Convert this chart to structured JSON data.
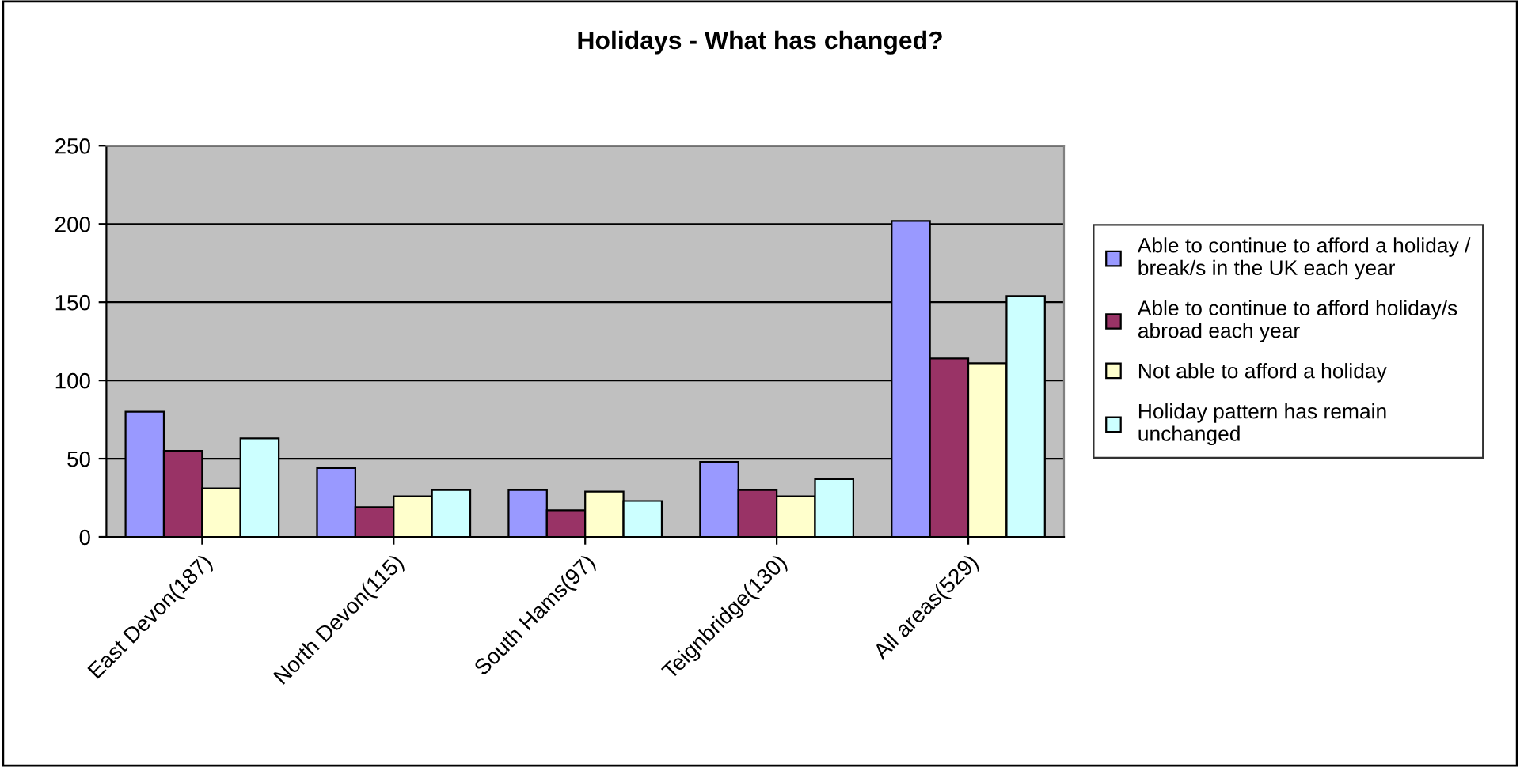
{
  "chart_data": {
    "type": "bar",
    "title": "Holidays - What has changed?",
    "categories": [
      "East Devon(187)",
      "North Devon(115)",
      "South Hams(97)",
      "Teignbridge(130)",
      "All areas(529)"
    ],
    "series": [
      {
        "name": "Able to continue to afford a holiday /\nbreak/s in the UK each year",
        "color": "#9999ff",
        "values": [
          80,
          44,
          30,
          48,
          202
        ]
      },
      {
        "name": "Able to continue to afford holiday/s\nabroad each year",
        "color": "#993366",
        "values": [
          55,
          19,
          17,
          30,
          114
        ]
      },
      {
        "name": "Not able to afford a holiday",
        "color": "#ffffcc",
        "values": [
          31,
          26,
          29,
          26,
          111
        ]
      },
      {
        "name": "Holiday pattern has remain\nunchanged",
        "color": "#ccffff",
        "values": [
          63,
          30,
          23,
          37,
          154
        ]
      }
    ],
    "ylim": [
      0,
      250
    ],
    "yticks": [
      0,
      50,
      100,
      150,
      200,
      250
    ],
    "grid": "y",
    "legend": "right"
  }
}
